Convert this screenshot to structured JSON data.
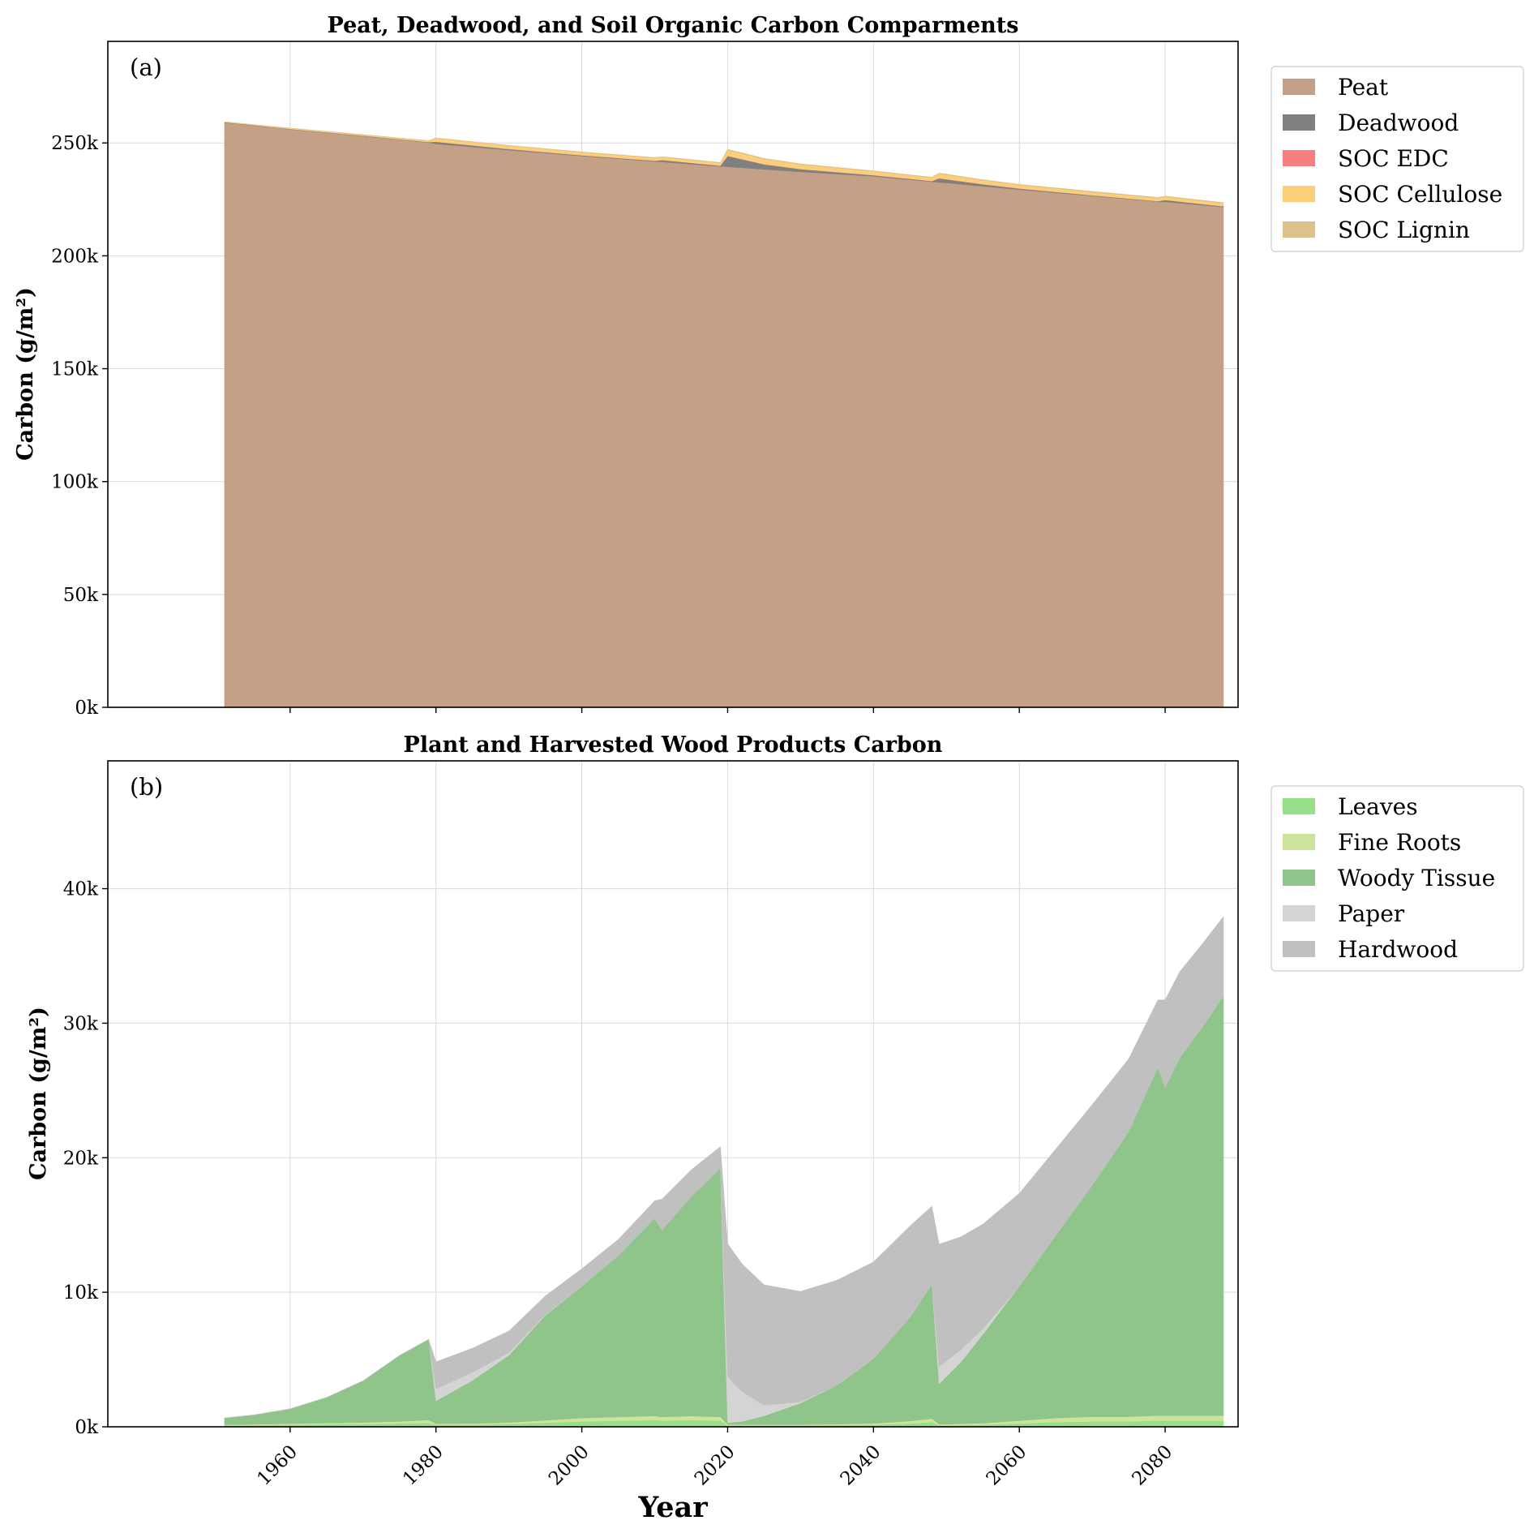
{
  "chart_data": [
    {
      "type": "area",
      "stacked": true,
      "title": "Peat, Deadwood, and Soil Organic Carbon Comparments",
      "panel_label": "(a)",
      "xlabel": "",
      "ylabel": "Carbon (g/m²)",
      "ylim": [
        0,
        295000
      ],
      "xlim": [
        1935,
        2090
      ],
      "yticks": [
        0,
        50000,
        100000,
        150000,
        200000,
        250000
      ],
      "ytick_labels": [
        "0k",
        "50k",
        "100k",
        "150k",
        "200k",
        "250k"
      ],
      "grid": true,
      "legend_position": "outside-right-top",
      "x": [
        1951,
        1960,
        1970,
        1979,
        1980,
        1990,
        2000,
        2010,
        2011,
        2019,
        2020,
        2025,
        2030,
        2040,
        2048,
        2049,
        2055,
        2060,
        2070,
        2079,
        2080,
        2088
      ],
      "series": [
        {
          "name": "Peat",
          "color": "#c4a186",
          "values": [
            259000,
            256000,
            253000,
            250200,
            249600,
            246800,
            244200,
            241800,
            241600,
            239600,
            239400,
            238300,
            237200,
            235200,
            232800,
            232600,
            230800,
            229300,
            226500,
            224000,
            223900,
            221600
          ]
        },
        {
          "name": "Deadwood",
          "color": "#808080",
          "values": [
            200,
            200,
            200,
            200,
            900,
            500,
            300,
            300,
            800,
            300,
            4800,
            2200,
            1200,
            500,
            300,
            1700,
            900,
            500,
            300,
            200,
            800,
            300
          ]
        },
        {
          "name": "SOC EDC",
          "color": "#f87f7f",
          "values": [
            0,
            0,
            0,
            0,
            50,
            50,
            50,
            50,
            50,
            50,
            100,
            100,
            50,
            50,
            50,
            100,
            50,
            50,
            50,
            50,
            50,
            50
          ]
        },
        {
          "name": "SOC Cellulose",
          "color": "#fbcf7a",
          "values": [
            150,
            300,
            400,
            500,
            1500,
            1400,
            1300,
            1200,
            1300,
            1200,
            2600,
            2300,
            2000,
            1600,
            1400,
            2000,
            1700,
            1500,
            1400,
            1300,
            1400,
            1300
          ]
        },
        {
          "name": "SOC Lignin",
          "color": "#dec18a",
          "values": [
            50,
            100,
            100,
            150,
            200,
            200,
            200,
            200,
            200,
            200,
            300,
            300,
            300,
            300,
            300,
            300,
            300,
            300,
            300,
            300,
            300,
            300
          ]
        }
      ]
    },
    {
      "type": "area",
      "stacked": true,
      "title": "Plant and Harvested Wood Products Carbon",
      "panel_label": "(b)",
      "xlabel": "Year",
      "ylabel": "Carbon (g/m²)",
      "ylim": [
        0,
        49500
      ],
      "xlim": [
        1935,
        2090
      ],
      "xticks": [
        1960,
        1980,
        2000,
        2020,
        2040,
        2060,
        2080
      ],
      "xtick_labels": [
        "1960",
        "1980",
        "2000",
        "2020",
        "2040",
        "2060",
        "2080"
      ],
      "yticks": [
        0,
        10000,
        20000,
        30000,
        40000
      ],
      "ytick_labels": [
        "0k",
        "10k",
        "20k",
        "30k",
        "40k"
      ],
      "grid": true,
      "legend_position": "outside-right-top",
      "x": [
        1951,
        1955,
        1960,
        1965,
        1970,
        1975,
        1979,
        1980,
        1985,
        1990,
        1995,
        2000,
        2005,
        2010,
        2011,
        2015,
        2019,
        2020,
        2022,
        2025,
        2030,
        2035,
        2040,
        2045,
        2048,
        2049,
        2052,
        2055,
        2060,
        2065,
        2070,
        2075,
        2079,
        2080,
        2082,
        2085,
        2088
      ],
      "series": [
        {
          "name": "Leaves",
          "color": "#98df8a",
          "values": [
            100,
            120,
            150,
            180,
            200,
            250,
            300,
            150,
            150,
            200,
            300,
            400,
            450,
            500,
            450,
            500,
            450,
            100,
            100,
            100,
            100,
            120,
            150,
            250,
            350,
            100,
            120,
            150,
            250,
            350,
            400,
            400,
            450,
            450,
            450,
            450,
            450
          ]
        },
        {
          "name": "Fine Roots",
          "color": "#cde59a",
          "values": [
            50,
            60,
            80,
            100,
            120,
            150,
            200,
            80,
            90,
            120,
            180,
            250,
            280,
            300,
            280,
            300,
            280,
            60,
            60,
            60,
            60,
            80,
            100,
            180,
            250,
            80,
            100,
            120,
            200,
            300,
            350,
            350,
            380,
            380,
            380,
            380,
            380
          ]
        },
        {
          "name": "Woody Tissue",
          "color": "#8fc58a",
          "values": [
            500,
            700,
            1100,
            1900,
            3100,
            4900,
            6000,
            1700,
            3200,
            5000,
            7800,
            9800,
            12000,
            14700,
            13900,
            16300,
            18500,
            140,
            240,
            650,
            1600,
            2900,
            4800,
            7700,
            10000,
            3000,
            4600,
            6600,
            10000,
            13600,
            17200,
            21200,
            25900,
            24400,
            26600,
            28800,
            31200
          ]
        },
        {
          "name": "Paper",
          "color": "#d4d4d4",
          "values": [
            0,
            0,
            0,
            0,
            0,
            0,
            0,
            900,
            600,
            200,
            50,
            0,
            0,
            0,
            0,
            0,
            0,
            3400,
            2200,
            800,
            100,
            0,
            0,
            0,
            0,
            1300,
            900,
            400,
            0,
            0,
            0,
            0,
            0,
            0,
            0,
            0,
            0
          ]
        },
        {
          "name": "Hardwood",
          "color": "#c0c0c0",
          "values": [
            0,
            0,
            0,
            0,
            0,
            0,
            0,
            2000,
            1800,
            1600,
            1400,
            1300,
            1200,
            1300,
            2300,
            2000,
            1600,
            9900,
            9500,
            8950,
            8200,
            7800,
            7200,
            6800,
            5800,
            9100,
            8400,
            7800,
            6900,
            6400,
            6000,
            5400,
            5000,
            6500,
            6400,
            6200,
            5900
          ]
        }
      ]
    }
  ]
}
